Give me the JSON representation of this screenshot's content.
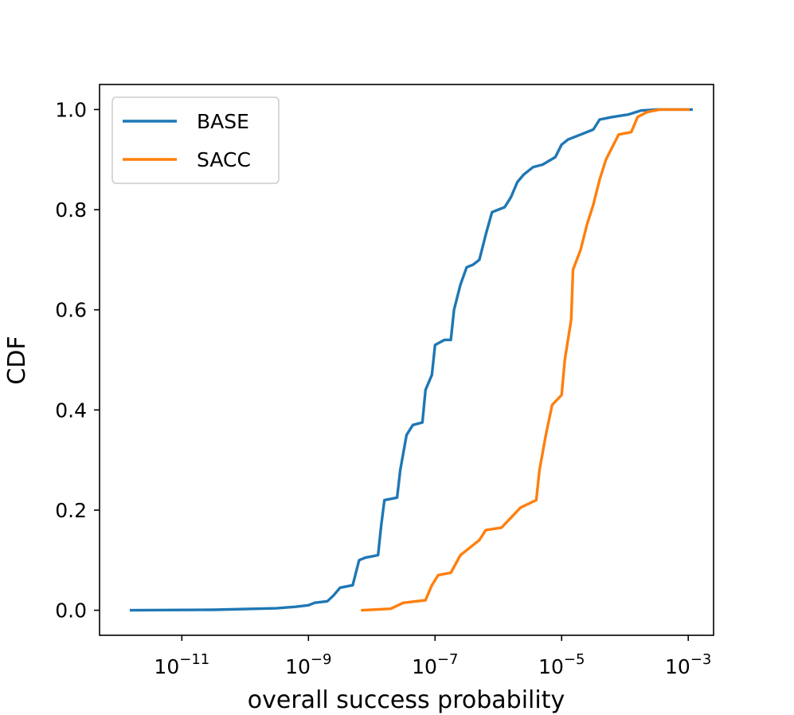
{
  "chart_data": {
    "type": "line",
    "title": "",
    "xlabel": "overall success probability",
    "ylabel": "CDF",
    "xscale": "log",
    "xlim_exp": [
      -12.3,
      -2.6
    ],
    "ylim": [
      -0.05,
      1.05
    ],
    "x_ticks": [
      {
        "exp": -11,
        "base": "10",
        "sup": "−11"
      },
      {
        "exp": -9,
        "base": "10",
        "sup": "−9"
      },
      {
        "exp": -7,
        "base": "10",
        "sup": "−7"
      },
      {
        "exp": -5,
        "base": "10",
        "sup": "−5"
      },
      {
        "exp": -3,
        "base": "10",
        "sup": "−3"
      }
    ],
    "y_ticks": [
      {
        "value": 0.0,
        "label": "0.0"
      },
      {
        "value": 0.2,
        "label": "0.2"
      },
      {
        "value": 0.4,
        "label": "0.4"
      },
      {
        "value": 0.6,
        "label": "0.6"
      },
      {
        "value": 0.8,
        "label": "0.8"
      },
      {
        "value": 1.0,
        "label": "1.0"
      }
    ],
    "grid": false,
    "legend_position": "top-left",
    "series": [
      {
        "name": "BASE",
        "color": "#1f77b4",
        "points_log10x": [
          [
            -11.8,
            0.0
          ],
          [
            -10.5,
            0.001
          ],
          [
            -9.5,
            0.004
          ],
          [
            -9.2,
            0.007
          ],
          [
            -9.0,
            0.01
          ],
          [
            -8.9,
            0.015
          ],
          [
            -8.7,
            0.018
          ],
          [
            -8.6,
            0.03
          ],
          [
            -8.5,
            0.045
          ],
          [
            -8.3,
            0.05
          ],
          [
            -8.25,
            0.075
          ],
          [
            -8.2,
            0.1
          ],
          [
            -8.1,
            0.105
          ],
          [
            -7.9,
            0.11
          ],
          [
            -7.85,
            0.17
          ],
          [
            -7.8,
            0.22
          ],
          [
            -7.6,
            0.225
          ],
          [
            -7.55,
            0.28
          ],
          [
            -7.45,
            0.35
          ],
          [
            -7.35,
            0.37
          ],
          [
            -7.2,
            0.375
          ],
          [
            -7.15,
            0.44
          ],
          [
            -7.05,
            0.47
          ],
          [
            -7.0,
            0.53
          ],
          [
            -6.85,
            0.54
          ],
          [
            -6.75,
            0.54
          ],
          [
            -6.7,
            0.6
          ],
          [
            -6.6,
            0.65
          ],
          [
            -6.5,
            0.685
          ],
          [
            -6.4,
            0.69
          ],
          [
            -6.3,
            0.7
          ],
          [
            -6.2,
            0.75
          ],
          [
            -6.1,
            0.795
          ],
          [
            -6.0,
            0.8
          ],
          [
            -5.9,
            0.805
          ],
          [
            -5.8,
            0.825
          ],
          [
            -5.7,
            0.855
          ],
          [
            -5.6,
            0.87
          ],
          [
            -5.45,
            0.885
          ],
          [
            -5.3,
            0.89
          ],
          [
            -5.1,
            0.905
          ],
          [
            -5.0,
            0.93
          ],
          [
            -4.9,
            0.94
          ],
          [
            -4.7,
            0.95
          ],
          [
            -4.5,
            0.96
          ],
          [
            -4.4,
            0.98
          ],
          [
            -4.2,
            0.985
          ],
          [
            -3.95,
            0.99
          ],
          [
            -3.75,
            0.998
          ],
          [
            -3.5,
            1.0
          ],
          [
            -3.0,
            1.0
          ],
          [
            -2.95,
            1.0
          ]
        ]
      },
      {
        "name": "SACC",
        "color": "#ff7f0e",
        "points_log10x": [
          [
            -8.15,
            0.0
          ],
          [
            -7.7,
            0.003
          ],
          [
            -7.5,
            0.015
          ],
          [
            -7.15,
            0.02
          ],
          [
            -7.05,
            0.05
          ],
          [
            -6.95,
            0.07
          ],
          [
            -6.75,
            0.075
          ],
          [
            -6.6,
            0.11
          ],
          [
            -6.45,
            0.125
          ],
          [
            -6.3,
            0.14
          ],
          [
            -6.2,
            0.16
          ],
          [
            -5.95,
            0.165
          ],
          [
            -5.8,
            0.185
          ],
          [
            -5.65,
            0.205
          ],
          [
            -5.4,
            0.22
          ],
          [
            -5.35,
            0.28
          ],
          [
            -5.25,
            0.35
          ],
          [
            -5.15,
            0.41
          ],
          [
            -5.0,
            0.43
          ],
          [
            -4.95,
            0.5
          ],
          [
            -4.85,
            0.58
          ],
          [
            -4.82,
            0.68
          ],
          [
            -4.7,
            0.72
          ],
          [
            -4.6,
            0.77
          ],
          [
            -4.5,
            0.81
          ],
          [
            -4.4,
            0.86
          ],
          [
            -4.3,
            0.9
          ],
          [
            -4.1,
            0.95
          ],
          [
            -3.9,
            0.955
          ],
          [
            -3.8,
            0.985
          ],
          [
            -3.65,
            0.995
          ],
          [
            -3.45,
            1.0
          ],
          [
            -3.0,
            1.0
          ]
        ]
      }
    ]
  }
}
